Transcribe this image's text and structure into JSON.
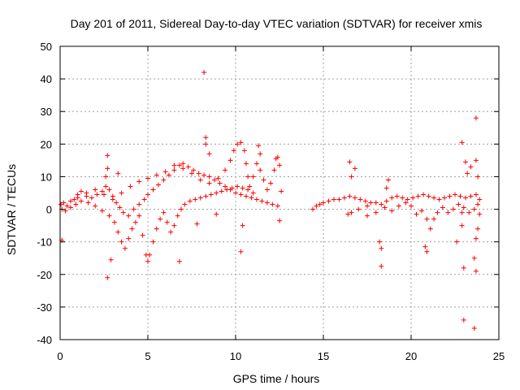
{
  "chart_data": {
    "type": "scatter",
    "title": "Day 201 of 2011, Sidereal Day-to-day VTEC variation (SDTVAR) for receiver xmis",
    "xlabel": "GPS time / hours",
    "ylabel": "SDTVAR / TECUs",
    "xlim": [
      0,
      25
    ],
    "ylim": [
      -40,
      50
    ],
    "xticks": [
      "0",
      "5",
      "10",
      "15",
      "20",
      "25"
    ],
    "yticks": [
      "-40",
      "-30",
      "-20",
      "-10",
      "0",
      "10",
      "20",
      "30",
      "40",
      "50"
    ],
    "grid": true,
    "marker": "+",
    "color": "#ff0000",
    "series": [
      {
        "name": "SDTVAR",
        "points": [
          [
            0.05,
            1.5
          ],
          [
            0.2,
            2.0
          ],
          [
            0.4,
            1.0
          ],
          [
            0.6,
            2.5
          ],
          [
            0.8,
            3.0
          ],
          [
            1.0,
            4.5
          ],
          [
            1.2,
            5.5
          ],
          [
            1.5,
            4.0
          ],
          [
            1.8,
            3.5
          ],
          [
            2.1,
            4.5
          ],
          [
            2.4,
            5.5
          ],
          [
            2.6,
            7.0
          ],
          [
            2.8,
            6.0
          ],
          [
            3.0,
            4.0
          ],
          [
            3.2,
            2.0
          ],
          [
            3.4,
            0.5
          ],
          [
            3.6,
            -1.0
          ],
          [
            3.9,
            -2.0
          ],
          [
            4.2,
            0.0
          ],
          [
            4.5,
            1.5
          ],
          [
            4.8,
            3.0
          ],
          [
            5.0,
            4.5
          ],
          [
            5.3,
            6.0
          ],
          [
            5.6,
            7.5
          ],
          [
            5.9,
            9.0
          ],
          [
            6.2,
            10.5
          ],
          [
            6.5,
            12.0
          ],
          [
            6.8,
            13.5
          ],
          [
            7.0,
            14.0
          ],
          [
            7.3,
            13.0
          ],
          [
            7.6,
            12.0
          ],
          [
            7.9,
            11.0
          ],
          [
            8.2,
            10.5
          ],
          [
            8.5,
            10.0
          ],
          [
            8.8,
            9.0
          ],
          [
            9.1,
            8.0
          ],
          [
            9.4,
            7.0
          ],
          [
            9.7,
            6.0
          ],
          [
            10.0,
            5.0
          ],
          [
            10.3,
            4.5
          ],
          [
            10.6,
            4.0
          ],
          [
            10.9,
            3.5
          ],
          [
            11.2,
            3.0
          ],
          [
            11.5,
            2.5
          ],
          [
            11.8,
            2.0
          ],
          [
            12.1,
            1.5
          ],
          [
            12.4,
            1.0
          ],
          [
            0.1,
            0.0
          ],
          [
            0.3,
            -0.5
          ],
          [
            0.6,
            0.5
          ],
          [
            0.9,
            1.5
          ],
          [
            1.2,
            2.5
          ],
          [
            1.6,
            2.0
          ],
          [
            2.0,
            1.0
          ],
          [
            2.4,
            -0.5
          ],
          [
            2.8,
            -2.0
          ],
          [
            3.1,
            -4.0
          ],
          [
            3.3,
            -7.0
          ],
          [
            3.5,
            -10.0
          ],
          [
            3.7,
            -12.0
          ],
          [
            3.9,
            -9.0
          ],
          [
            4.1,
            -6.0
          ],
          [
            4.3,
            -4.0
          ],
          [
            4.5,
            -2.0
          ],
          [
            4.7,
            -8.0
          ],
          [
            4.9,
            -14.0
          ],
          [
            5.0,
            -16.0
          ],
          [
            5.1,
            -14.0
          ],
          [
            5.3,
            -10.0
          ],
          [
            5.5,
            -6.0
          ],
          [
            5.7,
            -3.0
          ],
          [
            5.9,
            -1.0
          ],
          [
            6.1,
            -4.0
          ],
          [
            6.3,
            -7.0
          ],
          [
            6.5,
            -5.0
          ],
          [
            6.7,
            -2.0
          ],
          [
            6.9,
            0.0
          ],
          [
            7.1,
            1.5
          ],
          [
            7.4,
            2.5
          ],
          [
            7.7,
            3.0
          ],
          [
            8.0,
            3.5
          ],
          [
            8.3,
            4.0
          ],
          [
            8.6,
            4.5
          ],
          [
            8.9,
            5.0
          ],
          [
            9.2,
            5.5
          ],
          [
            9.5,
            6.0
          ],
          [
            9.8,
            6.5
          ],
          [
            10.1,
            7.0
          ],
          [
            10.4,
            6.5
          ],
          [
            10.7,
            6.0
          ],
          [
            11.0,
            5.0
          ],
          [
            1.0,
            3.5
          ],
          [
            1.5,
            5.0
          ],
          [
            2.0,
            6.0
          ],
          [
            2.5,
            4.5
          ],
          [
            3.0,
            3.0
          ],
          [
            3.5,
            5.0
          ],
          [
            4.0,
            7.0
          ],
          [
            4.5,
            8.5
          ],
          [
            5.0,
            9.5
          ],
          [
            5.5,
            10.5
          ],
          [
            6.0,
            11.5
          ],
          [
            6.5,
            13.5
          ],
          [
            7.0,
            12.5
          ],
          [
            7.5,
            11.0
          ],
          [
            8.0,
            9.0
          ],
          [
            8.5,
            8.0
          ],
          [
            9.0,
            9.5
          ],
          [
            9.4,
            12.0
          ],
          [
            9.7,
            15.0
          ],
          [
            9.9,
            18.0
          ],
          [
            10.1,
            20.0
          ],
          [
            10.3,
            20.5
          ],
          [
            10.5,
            18.0
          ],
          [
            10.6,
            14.0
          ],
          [
            10.7,
            10.0
          ],
          [
            10.8,
            7.0
          ],
          [
            11.0,
            10.0
          ],
          [
            11.2,
            14.0
          ],
          [
            11.4,
            12.0
          ],
          [
            11.6,
            9.0
          ],
          [
            11.8,
            6.0
          ],
          [
            12.0,
            8.0
          ],
          [
            12.2,
            12.0
          ],
          [
            12.3,
            15.5
          ],
          [
            12.4,
            16.0
          ],
          [
            12.5,
            13.5
          ],
          [
            2.7,
            16.5
          ],
          [
            2.7,
            12.5
          ],
          [
            2.6,
            10.0
          ],
          [
            2.7,
            -21.0
          ],
          [
            2.9,
            -15.5
          ],
          [
            3.3,
            11.0
          ],
          [
            0.1,
            -9.5
          ],
          [
            6.8,
            -16.0
          ],
          [
            7.8,
            -4.5
          ],
          [
            8.2,
            42.0
          ],
          [
            8.3,
            22.0
          ],
          [
            8.3,
            20.0
          ],
          [
            8.5,
            17.0
          ],
          [
            8.9,
            -1.5
          ],
          [
            10.3,
            -13.0
          ],
          [
            10.4,
            -5.0
          ],
          [
            11.3,
            19.5
          ],
          [
            11.4,
            17.0
          ],
          [
            12.6,
            5.5
          ],
          [
            12.5,
            -3.5
          ],
          [
            14.4,
            0.0
          ],
          [
            14.6,
            1.0
          ],
          [
            14.8,
            1.5
          ],
          [
            15.0,
            2.0
          ],
          [
            15.3,
            2.5
          ],
          [
            15.6,
            3.0
          ],
          [
            15.9,
            3.0
          ],
          [
            16.2,
            3.5
          ],
          [
            16.5,
            4.0
          ],
          [
            16.8,
            3.5
          ],
          [
            17.1,
            3.0
          ],
          [
            17.4,
            2.5
          ],
          [
            17.7,
            2.0
          ],
          [
            18.0,
            2.0
          ],
          [
            18.3,
            1.5
          ],
          [
            18.6,
            2.5
          ],
          [
            18.9,
            3.5
          ],
          [
            19.2,
            4.0
          ],
          [
            19.5,
            3.5
          ],
          [
            19.8,
            3.0
          ],
          [
            20.1,
            3.5
          ],
          [
            20.4,
            4.0
          ],
          [
            20.7,
            4.5
          ],
          [
            21.0,
            4.0
          ],
          [
            21.3,
            3.5
          ],
          [
            21.6,
            3.0
          ],
          [
            21.9,
            3.5
          ],
          [
            22.2,
            4.0
          ],
          [
            22.5,
            4.5
          ],
          [
            22.8,
            4.0
          ],
          [
            23.1,
            3.5
          ],
          [
            23.4,
            4.0
          ],
          [
            23.7,
            4.5
          ],
          [
            23.9,
            3.0
          ],
          [
            16.6,
            -1.0
          ],
          [
            17.0,
            0.0
          ],
          [
            17.5,
            1.0
          ],
          [
            18.0,
            -1.0
          ],
          [
            18.5,
            0.5
          ],
          [
            18.9,
            -0.5
          ],
          [
            19.3,
            1.0
          ],
          [
            19.7,
            2.0
          ],
          [
            20.0,
            1.0
          ],
          [
            20.3,
            -1.5
          ],
          [
            20.6,
            -0.5
          ],
          [
            20.9,
            -3.0
          ],
          [
            21.1,
            -6.0
          ],
          [
            21.3,
            -3.0
          ],
          [
            21.5,
            -1.0
          ],
          [
            21.8,
            0.5
          ],
          [
            22.1,
            -1.0
          ],
          [
            22.4,
            0.0
          ],
          [
            22.7,
            1.5
          ],
          [
            23.0,
            0.5
          ],
          [
            23.3,
            -1.0
          ],
          [
            23.6,
            0.0
          ],
          [
            23.8,
            1.5
          ],
          [
            23.9,
            -1.5
          ],
          [
            16.5,
            14.5
          ],
          [
            16.6,
            10.0
          ],
          [
            16.8,
            12.5
          ],
          [
            16.4,
            -1.5
          ],
          [
            17.5,
            -2.0
          ],
          [
            18.3,
            -12.0
          ],
          [
            18.3,
            -17.5
          ],
          [
            18.2,
            -10.0
          ],
          [
            18.7,
            9.0
          ],
          [
            18.6,
            6.5
          ],
          [
            20.8,
            -11.5
          ],
          [
            20.9,
            -13.0
          ],
          [
            22.6,
            -10.0
          ],
          [
            22.9,
            -1.0
          ],
          [
            22.9,
            -5.0
          ],
          [
            23.0,
            -34.0
          ],
          [
            23.0,
            -18.0
          ],
          [
            23.1,
            14.5
          ],
          [
            23.2,
            11.0
          ],
          [
            22.9,
            20.5
          ],
          [
            23.4,
            13.0
          ],
          [
            23.6,
            -36.5
          ],
          [
            23.6,
            -15.0
          ],
          [
            23.7,
            -9.0
          ],
          [
            23.7,
            15.0
          ],
          [
            23.7,
            28.0
          ],
          [
            23.7,
            -19.0
          ],
          [
            23.8,
            10.0
          ],
          [
            23.8,
            -6.0
          ]
        ]
      }
    ]
  }
}
